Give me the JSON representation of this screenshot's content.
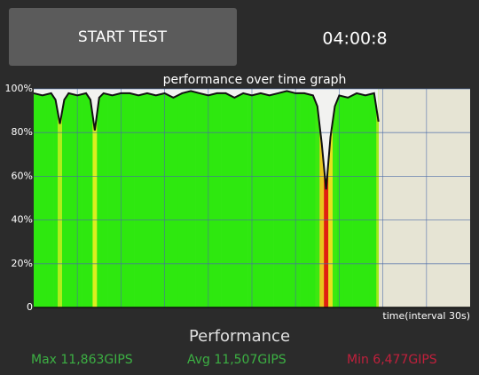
{
  "button": {
    "label": "START TEST"
  },
  "timer": "04:00:8",
  "chart_data": {
    "type": "line",
    "title": "performance over time graph",
    "x_label": "time(interval 30s)",
    "x": [
      0,
      2,
      4,
      5,
      6,
      7,
      8,
      10,
      12,
      13,
      14,
      15,
      16,
      18,
      20,
      22,
      24,
      26,
      28,
      30,
      32,
      34,
      36,
      38,
      40,
      42,
      44,
      46,
      48,
      50,
      52,
      54,
      56,
      58,
      60,
      62,
      64,
      65,
      66,
      67,
      68,
      69,
      70,
      72,
      74,
      76,
      78,
      79
    ],
    "values": [
      98,
      97,
      98,
      95,
      84,
      95,
      98,
      97,
      98,
      95,
      81,
      96,
      98,
      97,
      98,
      98,
      97,
      98,
      97,
      98,
      96,
      98,
      99,
      98,
      97,
      98,
      98,
      96,
      98,
      97,
      98,
      97,
      98,
      99,
      98,
      98,
      97,
      92,
      75,
      54,
      78,
      92,
      97,
      96,
      98,
      97,
      98,
      85
    ],
    "xlim": [
      0,
      100
    ],
    "ylim": [
      0,
      100
    ],
    "yticks": [
      0,
      {
        "value": 20,
        "label": "20%"
      },
      {
        "value": 40,
        "label": "40%"
      },
      {
        "value": 60,
        "label": "60%"
      },
      {
        "value": 80,
        "label": "80%"
      },
      {
        "value": 100,
        "label": "100%"
      }
    ],
    "line_color": "#111111",
    "grid": true
  },
  "summary": {
    "title": "Performance",
    "max": "Max 11,863GIPS",
    "avg": "Avg 11,507GIPS",
    "min": "Min 6,477GIPS"
  }
}
